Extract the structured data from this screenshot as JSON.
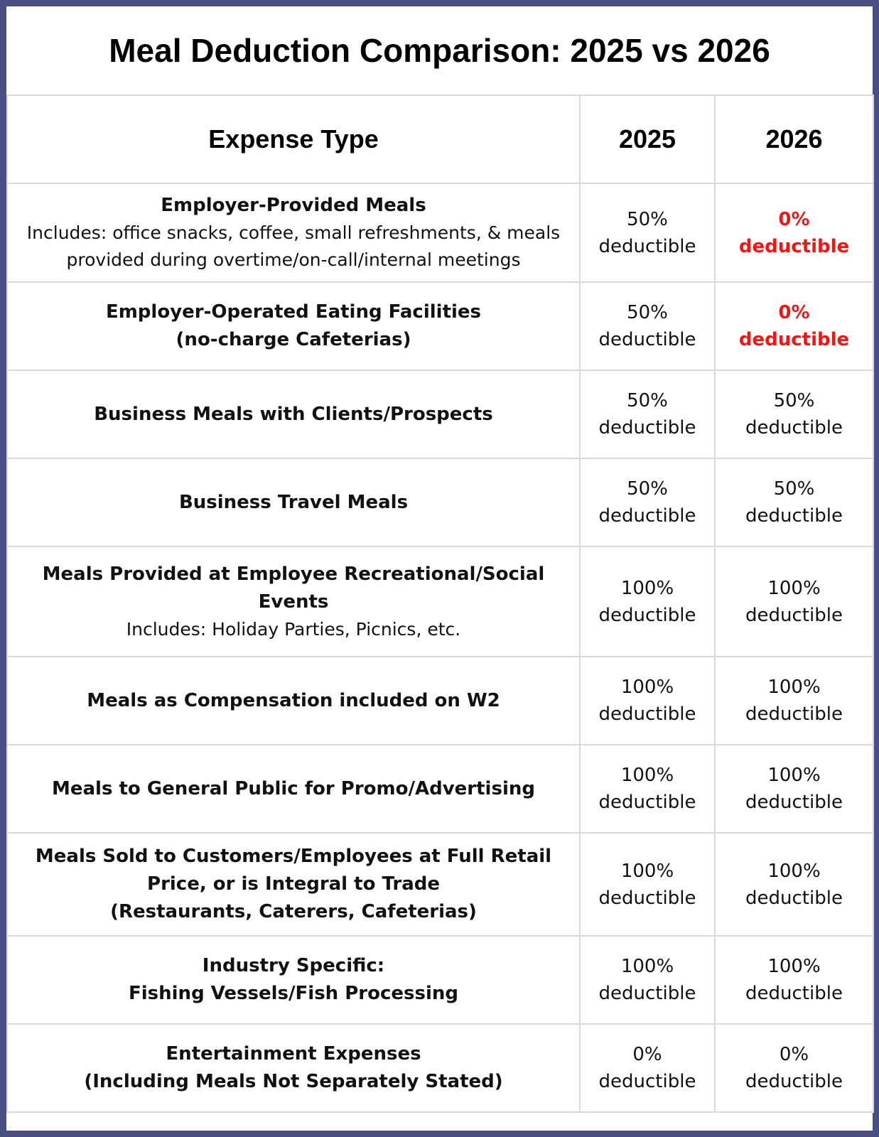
{
  "title": "Meal Deduction Comparison: 2025 vs 2026",
  "columns": {
    "expense": "Expense Type",
    "y2025": "2025",
    "y2026": "2026"
  },
  "highlight_color": "#ff1010",
  "rows": [
    {
      "name": "Employer-Provided Meals",
      "desc": "Includes: office snacks, coffee, small refreshments, & meals provided during overtime/on-call/internal meetings",
      "y2025": {
        "pct": "50%",
        "label": "deductible",
        "highlight": false
      },
      "y2026": {
        "pct": "0%",
        "label": "deductible",
        "highlight": true
      }
    },
    {
      "name": "Employer-Operated Eating Facilities (no-charge Cafeterias)",
      "desc": "",
      "y2025": {
        "pct": "50%",
        "label": "deductible",
        "highlight": false
      },
      "y2026": {
        "pct": "0%",
        "label": "deductible",
        "highlight": true
      }
    },
    {
      "name": "Business Meals with Clients/Prospects",
      "desc": "",
      "y2025": {
        "pct": "50%",
        "label": "deductible",
        "highlight": false
      },
      "y2026": {
        "pct": "50%",
        "label": "deductible",
        "highlight": false
      }
    },
    {
      "name": "Business Travel Meals",
      "desc": "",
      "y2025": {
        "pct": "50%",
        "label": "deductible",
        "highlight": false
      },
      "y2026": {
        "pct": "50%",
        "label": "deductible",
        "highlight": false
      }
    },
    {
      "name": "Meals Provided at Employee Recreational/Social Events",
      "desc": "Includes: Holiday Parties, Picnics, etc.",
      "y2025": {
        "pct": "100%",
        "label": "deductible",
        "highlight": false
      },
      "y2026": {
        "pct": "100%",
        "label": "deductible",
        "highlight": false
      }
    },
    {
      "name": "Meals as Compensation included on W2",
      "desc": "",
      "y2025": {
        "pct": "100%",
        "label": "deductible",
        "highlight": false
      },
      "y2026": {
        "pct": "100%",
        "label": "deductible",
        "highlight": false
      }
    },
    {
      "name": "Meals to General Public for Promo/Advertising",
      "desc": "",
      "y2025": {
        "pct": "100%",
        "label": "deductible",
        "highlight": false
      },
      "y2026": {
        "pct": "100%",
        "label": "deductible",
        "highlight": false
      }
    },
    {
      "name": "Meals Sold to Customers/Employees at Full Retail Price, or is Integral to Trade (Restaurants, Caterers, Cafeterias)",
      "desc": "",
      "y2025": {
        "pct": "100%",
        "label": "deductible",
        "highlight": false
      },
      "y2026": {
        "pct": "100%",
        "label": "deductible",
        "highlight": false
      }
    },
    {
      "name": "Industry Specific: Fishing Vessels/Fish Processing",
      "desc": "",
      "y2025": {
        "pct": "100%",
        "label": "deductible",
        "highlight": false
      },
      "y2026": {
        "pct": "100%",
        "label": "deductible",
        "highlight": false
      }
    },
    {
      "name": "Entertainment Expenses (Including Meals Not Separately Stated)",
      "desc": "",
      "y2025": {
        "pct": "0%",
        "label": "deductible",
        "highlight": false
      },
      "y2026": {
        "pct": "0%",
        "label": "deductible",
        "highlight": false
      }
    }
  ]
}
